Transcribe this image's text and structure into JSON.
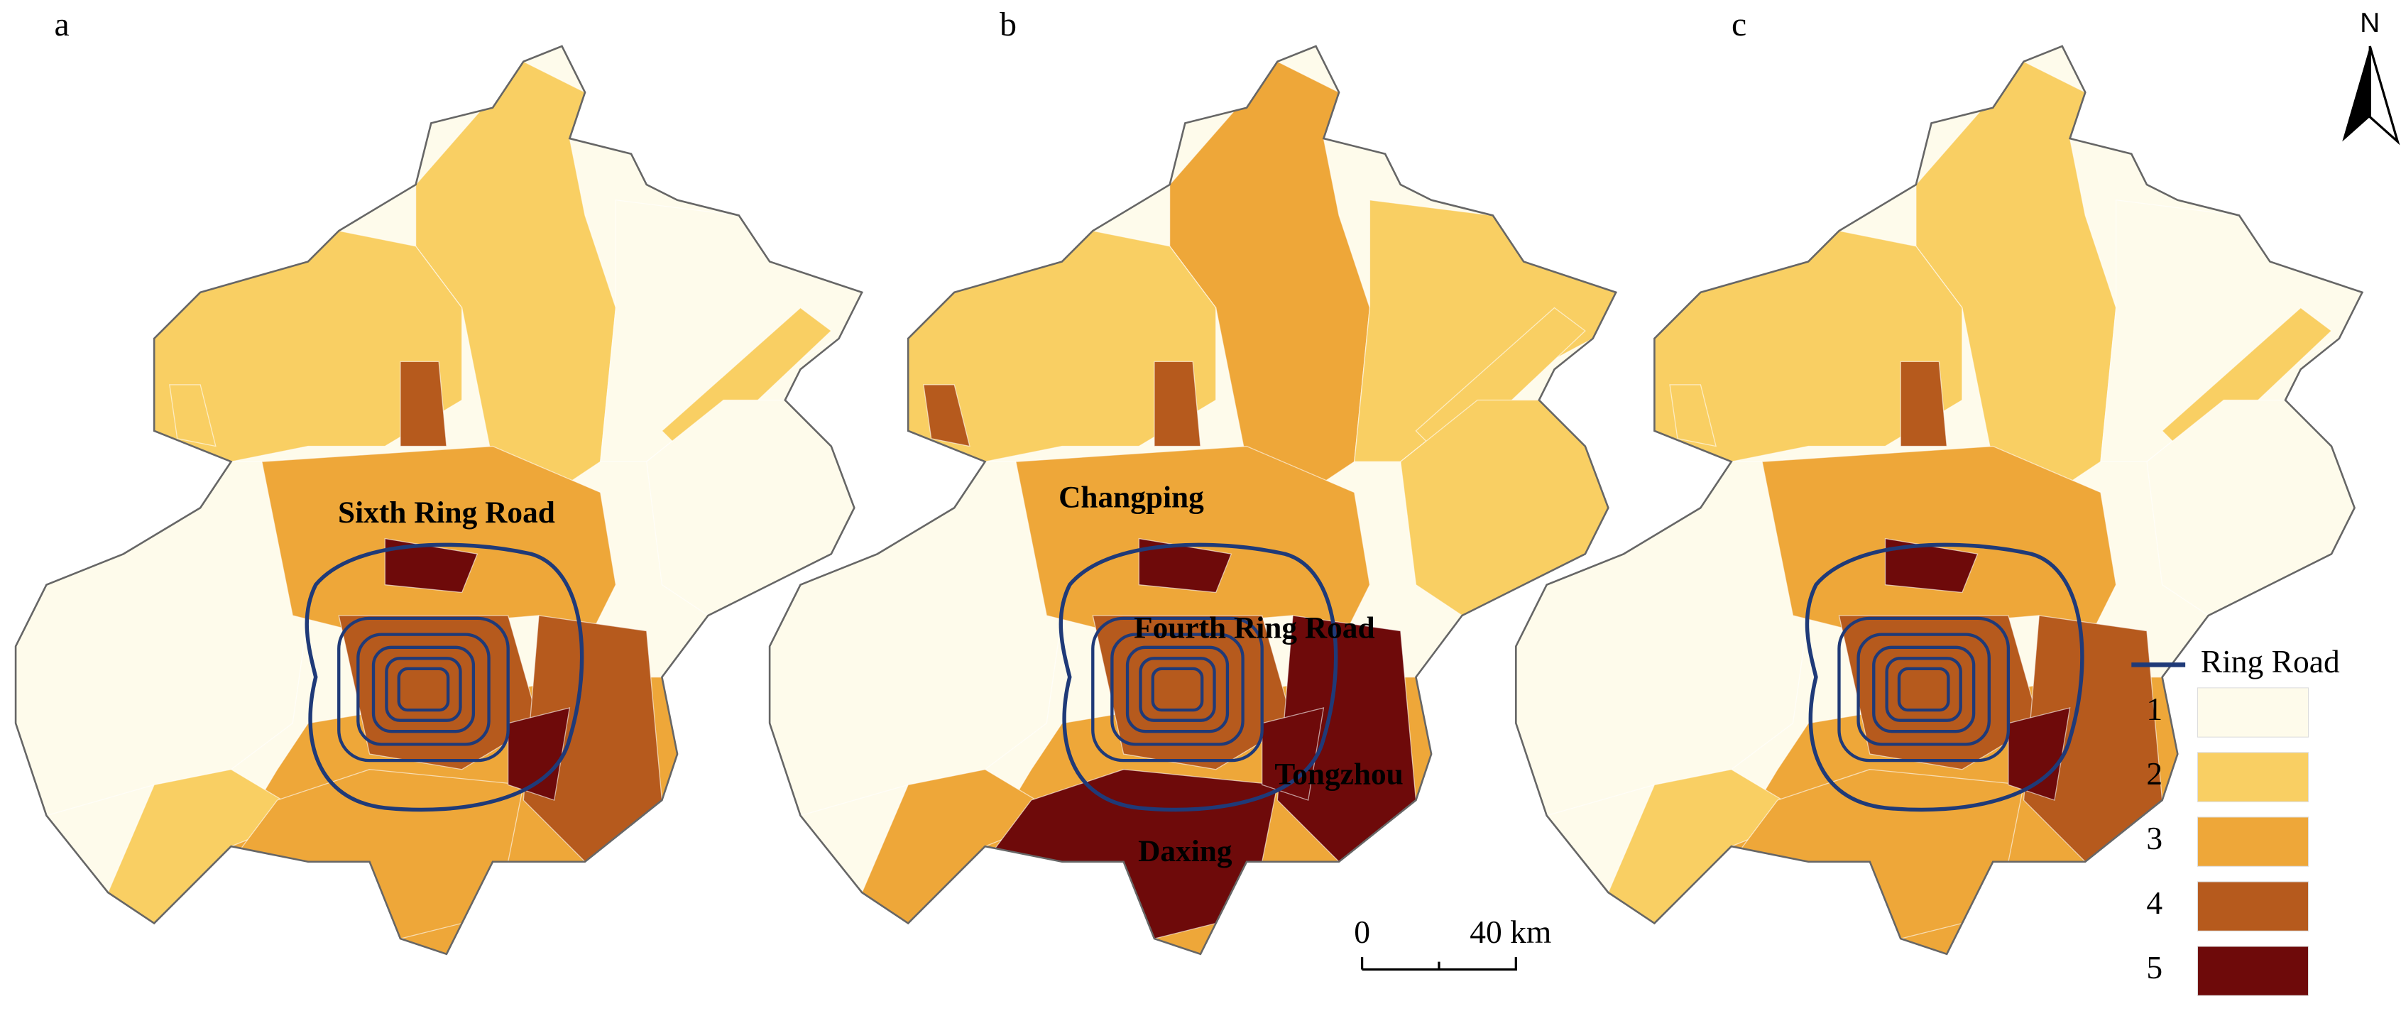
{
  "panels": [
    {
      "label": "a",
      "annotations": [
        "Sixth Ring Road"
      ]
    },
    {
      "label": "b",
      "annotations": [
        "Changping",
        "Fourth Ring Road",
        "Tongzhou",
        "Daxing"
      ]
    },
    {
      "label": "c"
    }
  ],
  "legend": {
    "line": "Ring Road",
    "line_color": "#1f3a78",
    "classes": [
      {
        "label": "1",
        "color": "#fefbeb"
      },
      {
        "label": "2",
        "color": "#f9cf63"
      },
      {
        "label": "3",
        "color": "#eea739"
      },
      {
        "label": "4",
        "color": "#b65a1d"
      },
      {
        "label": "5",
        "color": "#6e0a0a"
      }
    ]
  },
  "scale_bar": {
    "start": "0",
    "end": "40 km"
  },
  "north": "N"
}
